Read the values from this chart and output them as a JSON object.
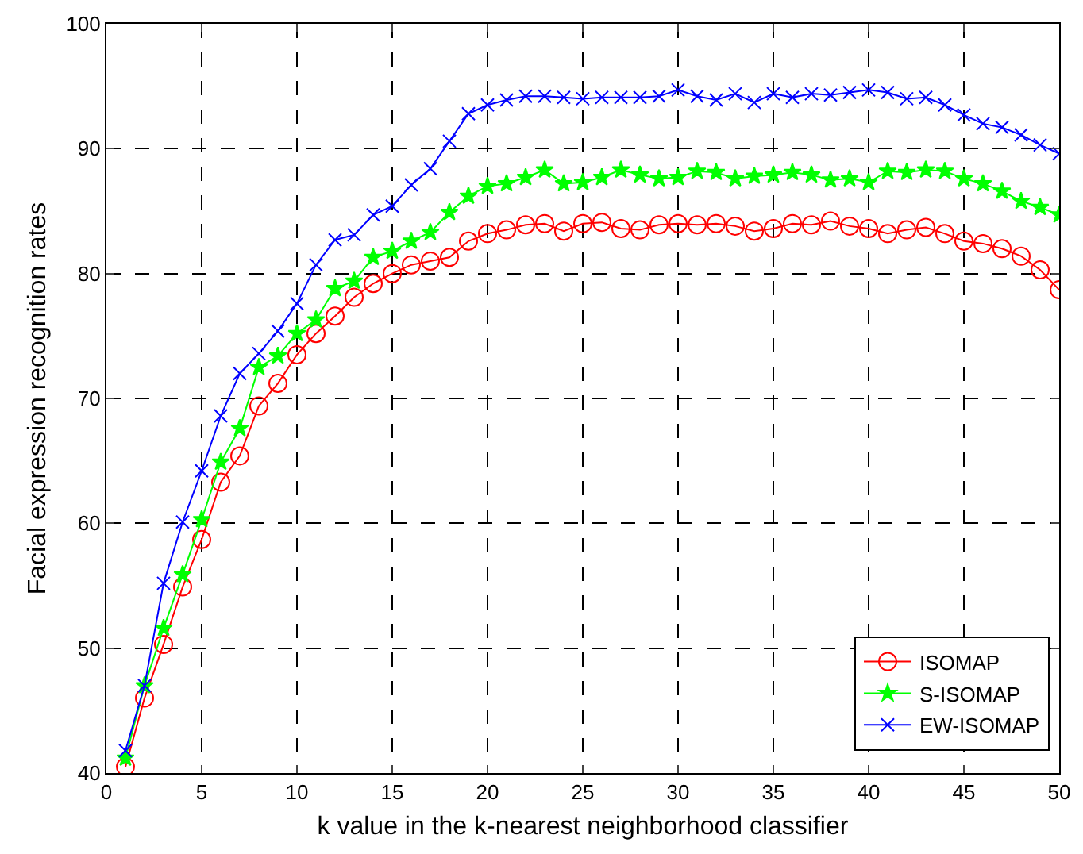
{
  "chart_data": {
    "type": "line",
    "xlabel": "k value in the k-nearest neighborhood classifier",
    "ylabel": "Facial expression recognition rates",
    "x": [
      1,
      2,
      3,
      4,
      5,
      6,
      7,
      8,
      9,
      10,
      11,
      12,
      13,
      14,
      15,
      16,
      17,
      18,
      19,
      20,
      21,
      22,
      23,
      24,
      25,
      26,
      27,
      28,
      29,
      30,
      31,
      32,
      33,
      34,
      35,
      36,
      37,
      38,
      39,
      40,
      41,
      42,
      43,
      44,
      45,
      46,
      47,
      48,
      49,
      50
    ],
    "series": [
      {
        "name": "ISOMAP",
        "color": "#ff0000",
        "marker": "circle",
        "values": [
          40.5,
          46,
          50.3,
          54.9,
          58.7,
          63.3,
          65.4,
          69.4,
          71.2,
          73.5,
          75.2,
          76.6,
          78.1,
          79.2,
          80,
          80.7,
          81,
          81.3,
          82.6,
          83.2,
          83.5,
          83.9,
          84,
          83.4,
          84,
          84.1,
          83.6,
          83.5,
          83.9,
          84,
          83.9,
          84,
          83.8,
          83.4,
          83.6,
          84,
          83.9,
          84.2,
          83.8,
          83.6,
          83.2,
          83.5,
          83.7,
          83.2,
          82.6,
          82.4,
          82,
          81.4,
          80.3,
          78.7
        ]
      },
      {
        "name": "S-ISOMAP",
        "color": "#00ff00",
        "marker": "star",
        "values": [
          41.2,
          47,
          51.6,
          55.9,
          60.3,
          64.9,
          67.6,
          72.5,
          73.4,
          75.2,
          76.3,
          78.8,
          79.4,
          81.3,
          81.8,
          82.6,
          83.3,
          84.9,
          86.2,
          87,
          87.2,
          87.7,
          88.3,
          87.2,
          87.3,
          87.7,
          88.3,
          87.9,
          87.6,
          87.7,
          88.2,
          88.1,
          87.6,
          87.8,
          87.9,
          88.1,
          87.9,
          87.5,
          87.6,
          87.3,
          88.2,
          88.1,
          88.3,
          88.2,
          87.6,
          87.2,
          86.6,
          85.8,
          85.3,
          84.7
        ]
      },
      {
        "name": "EW-ISOMAP",
        "color": "#0000ff",
        "marker": "cross",
        "values": [
          41.8,
          47,
          55.2,
          60.1,
          64.2,
          68.6,
          72,
          73.6,
          75.4,
          77.6,
          80.7,
          82.7,
          83.1,
          84.7,
          85.4,
          87.1,
          88.4,
          90.6,
          92.8,
          93.5,
          93.9,
          94.2,
          94.2,
          94.1,
          94,
          94.1,
          94.1,
          94.1,
          94.2,
          94.7,
          94.2,
          93.9,
          94.4,
          93.7,
          94.4,
          94.1,
          94.4,
          94.3,
          94.5,
          94.7,
          94.5,
          94,
          94.1,
          93.5,
          92.7,
          92,
          91.7,
          91.1,
          90.3,
          89.6
        ]
      }
    ],
    "xlim": [
      0,
      50
    ],
    "xticks": [
      0,
      5,
      10,
      15,
      20,
      25,
      30,
      35,
      40,
      45,
      50
    ],
    "ylim": [
      40,
      100
    ],
    "yticks": [
      40,
      50,
      60,
      70,
      80,
      90,
      100
    ],
    "grid": true,
    "legend": "bottom right",
    "line_style": "solid"
  }
}
